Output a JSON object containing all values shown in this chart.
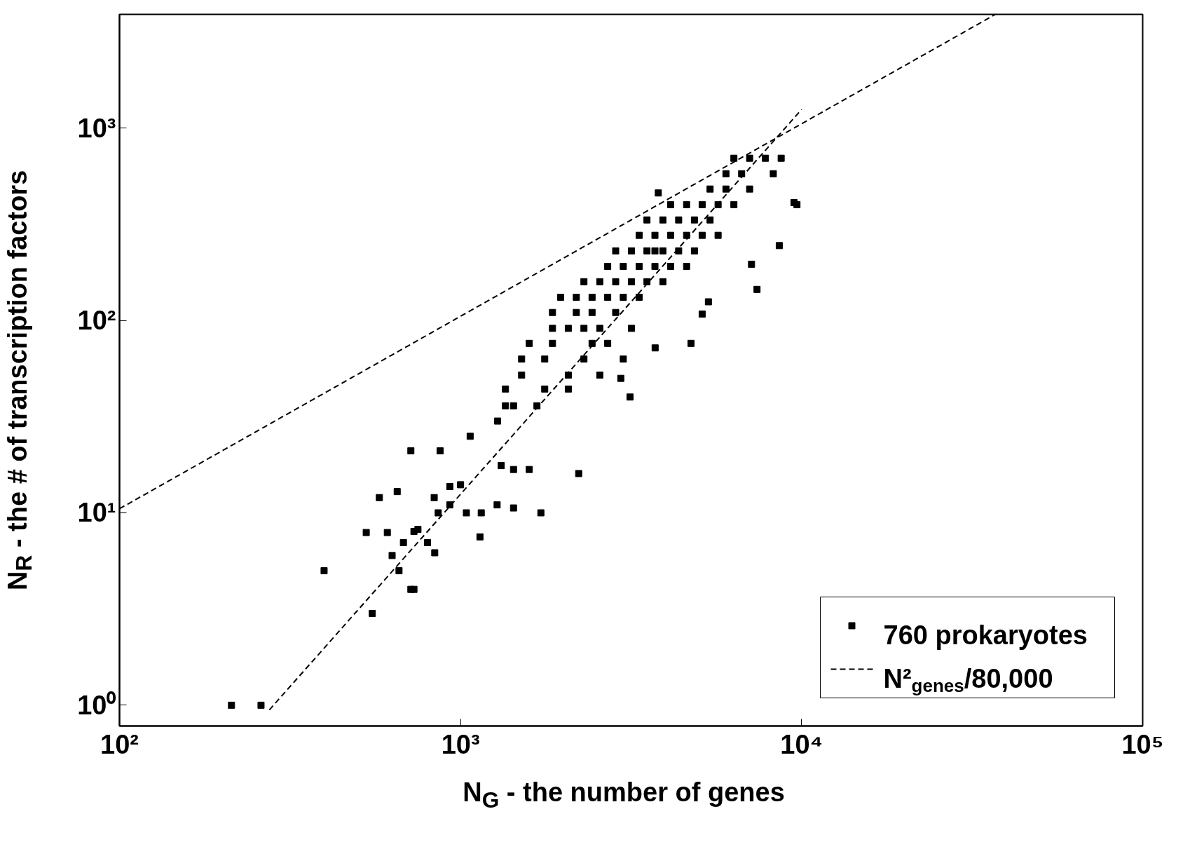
{
  "chart_data": {
    "type": "scatter",
    "xlabel": "N$_{G}$ - the number of genes",
    "ylabel": "N$_{R}$ - the # of transcription factors",
    "log": "xy",
    "grid": false,
    "legend": "bottom right",
    "xlim": [
      100,
      100000
    ],
    "ylim": [
      0.78,
      3900
    ],
    "xticks": [
      {
        "value": 100,
        "label": "10²"
      },
      {
        "value": 1000,
        "label": "10³"
      },
      {
        "value": 10000,
        "label": "10⁴"
      },
      {
        "value": 100000,
        "label": "10⁵"
      }
    ],
    "yticks": [
      {
        "value": 1,
        "label": "10⁰"
      },
      {
        "value": 10,
        "label": "10¹"
      },
      {
        "value": 100,
        "label": "10²"
      },
      {
        "value": 1000,
        "label": "10³"
      }
    ],
    "series": [
      {
        "name": "760 prokaryotes",
        "marker": "square",
        "color": "#000000",
        "x": [
          213,
          260,
          398,
          551,
          715,
          730,
          715,
          871,
          1067,
          529,
          578,
          652,
          837,
          1000,
          1040,
          1150,
          1316,
          1430,
          1590,
          1720,
          1430,
          1280,
          930,
          750,
          610,
          680,
          800,
          840,
          630,
          660,
          730,
          860,
          930,
          1140,
          2220,
          1284,
          1354,
          1430,
          1354,
          1510,
          1590,
          1510,
          1675,
          1765,
          1765,
          1860,
          1860,
          1965,
          1860,
          2070,
          2070,
          2185,
          2185,
          2070,
          2300,
          2300,
          2300,
          2430,
          2430,
          2430,
          2560,
          2560,
          2560,
          2700,
          2700,
          2700,
          2850,
          2850,
          2850,
          3000,
          3000,
          3000,
          3170,
          3170,
          3170,
          3340,
          3340,
          3340,
          3520,
          3520,
          3520,
          3715,
          3715,
          3715,
          3920,
          3920,
          3920,
          4130,
          4130,
          4130,
          4360,
          4360,
          4600,
          4600,
          4600,
          4850,
          4850,
          5110,
          5110,
          5390,
          5390,
          5690,
          5690,
          6000,
          6000,
          6330,
          6330,
          6670,
          7040,
          7040,
          7830,
          8260,
          9690,
          8710,
          3800,
          7400,
          8600,
          9500,
          7130,
          4740,
          5110,
          5330,
          3720,
          3140,
          2950
        ],
        "values": [
          1,
          1,
          5,
          3,
          4,
          4,
          21,
          21,
          25,
          7.9,
          12,
          12.9,
          12,
          14,
          10,
          10,
          17.6,
          16.8,
          16.8,
          10,
          10.6,
          11,
          11,
          8.2,
          7.9,
          7,
          7,
          6.2,
          6,
          5,
          8,
          10,
          13.7,
          7.5,
          16,
          30,
          36,
          36,
          44,
          63,
          76,
          52,
          36,
          44,
          63,
          76,
          110,
          132,
          91,
          52,
          91,
          110,
          132,
          44,
          63,
          91,
          159,
          110,
          76,
          132,
          159,
          91,
          52,
          132,
          191,
          76,
          159,
          110,
          230,
          191,
          132,
          63,
          230,
          159,
          91,
          191,
          277,
          132,
          230,
          159,
          333,
          277,
          191,
          230,
          230,
          333,
          159,
          277,
          191,
          400,
          333,
          230,
          277,
          400,
          191,
          333,
          230,
          400,
          277,
          333,
          482,
          400,
          277,
          482,
          579,
          400,
          697,
          579,
          697,
          482,
          697,
          579,
          400,
          697,
          460,
          145,
          245,
          410,
          196,
          76,
          108,
          125,
          72,
          40,
          50
        ]
      },
      {
        "name": "N²$_{genes}$/80,000",
        "type": "line",
        "line_style": "dashed",
        "color": "#000000",
        "x": [
          275,
          1000,
          10000
        ],
        "values": [
          0.945,
          12.5,
          1250
        ]
      },
      {
        "type": "line",
        "line_style": "dashed",
        "color": "#000000",
        "x": [
          100,
          37000
        ],
        "values": [
          10.5,
          3900
        ]
      }
    ]
  }
}
